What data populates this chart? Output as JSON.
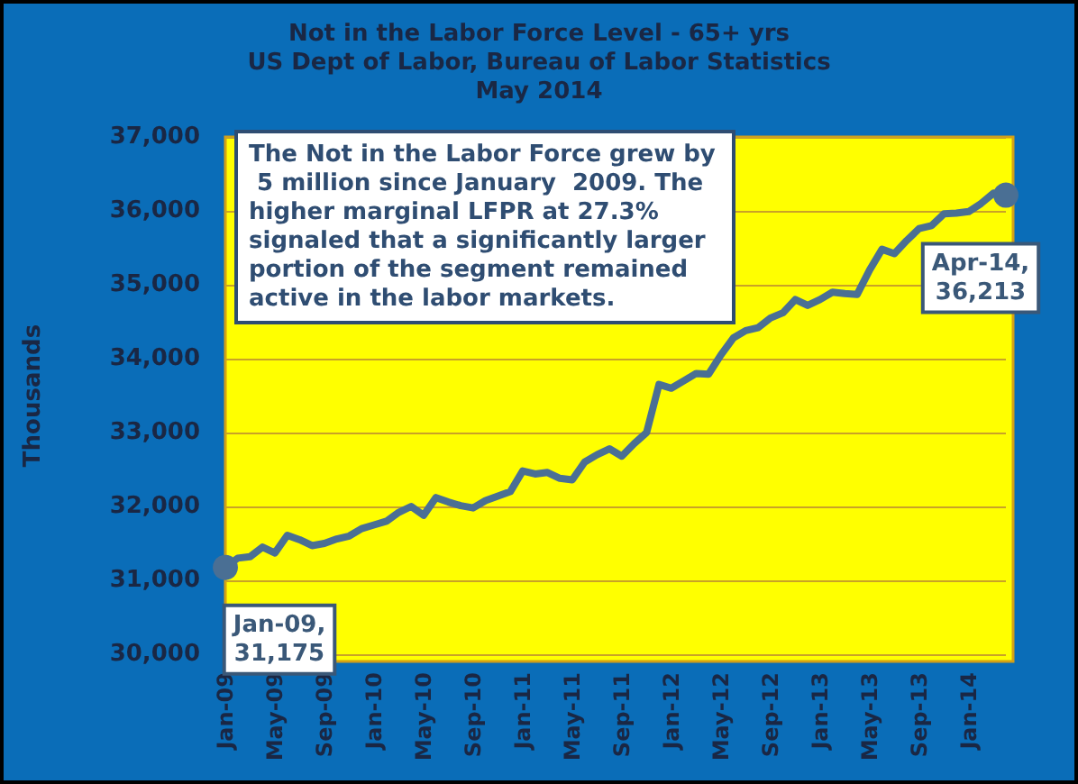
{
  "chart_data": {
    "type": "line",
    "title": "Not in the Labor Force Level - 65+ yrs\nUS Dept of Labor, Bureau of Labor Statistics\nMay 2014",
    "ylabel": "Thousands",
    "categories": [
      "Jan-09",
      null,
      null,
      null,
      "May-09",
      null,
      null,
      null,
      "Sep-09",
      null,
      null,
      null,
      "Jan-10",
      null,
      null,
      null,
      "May-10",
      null,
      null,
      null,
      "Sep-10",
      null,
      null,
      null,
      "Jan-11",
      null,
      null,
      null,
      "May-11",
      null,
      null,
      null,
      "Sep-11",
      null,
      null,
      null,
      "Jan-12",
      null,
      null,
      null,
      "May-12",
      null,
      null,
      null,
      "Sep-12",
      null,
      null,
      null,
      "Jan-13",
      null,
      null,
      null,
      "May-13",
      null,
      null,
      null,
      "Sep-13",
      null,
      null,
      null,
      "Jan-14",
      null,
      null,
      null
    ],
    "series": [
      {
        "color": "#4a6f94",
        "value_labels": [
          "Jan-09,\n31,175",
          null,
          null,
          null,
          null,
          null,
          null,
          null,
          null,
          null,
          null,
          null,
          null,
          null,
          null,
          null,
          null,
          null,
          null,
          null,
          null,
          null,
          null,
          null,
          null,
          null,
          null,
          null,
          null,
          null,
          null,
          null,
          null,
          null,
          null,
          null,
          null,
          null,
          null,
          null,
          null,
          null,
          null,
          null,
          null,
          null,
          null,
          null,
          null,
          null,
          null,
          null,
          null,
          null,
          null,
          null,
          null,
          null,
          null,
          null,
          null,
          null,
          null,
          "Apr-14,\n36,213"
        ],
        "values": [
          31175,
          31300,
          31320,
          31450,
          31370,
          31610,
          31550,
          31470,
          31500,
          31560,
          31600,
          31700,
          31750,
          31800,
          31920,
          32000,
          31880,
          32120,
          32060,
          32010,
          31980,
          32080,
          32140,
          32200,
          32480,
          32440,
          32460,
          32380,
          32360,
          32600,
          32700,
          32780,
          32680,
          32850,
          33000,
          33650,
          33600,
          33700,
          33800,
          33790,
          34050,
          34280,
          34380,
          34420,
          34550,
          34620,
          34800,
          34720,
          34800,
          34900,
          34880,
          34870,
          35200,
          35480,
          35420,
          35600,
          35760,
          35800,
          35960,
          35970,
          35990,
          36100,
          36240,
          36213
        ]
      }
    ],
    "ylim": [
      30000,
      37000
    ],
    "yticks": [
      {
        "value": 30000,
        "label": "30,000"
      },
      {
        "value": 31000,
        "label": "31,000"
      },
      {
        "value": 32000,
        "label": "32,000"
      },
      {
        "value": 33000,
        "label": "33,000"
      },
      {
        "value": 34000,
        "label": "34,000"
      },
      {
        "value": 35000,
        "label": "35,000"
      },
      {
        "value": 36000,
        "label": "36,000"
      },
      {
        "value": 37000,
        "label": "37,000"
      }
    ],
    "grid": "y",
    "marker": "none",
    "line_style": "solid",
    "annotations": [
      "The Not in the Labor Force grew by 5 million since January  2009. The higher marginal LFPR at 27.3% signaled that a significantly larger portion of the segment remained active in the labor markets."
    ]
  }
}
